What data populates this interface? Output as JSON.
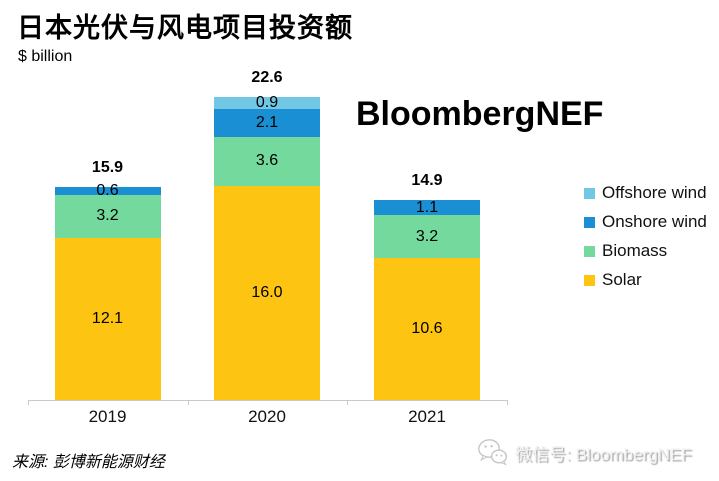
{
  "header": {
    "title": "日本光伏与风电项目投资额",
    "unit_label": "$ billion"
  },
  "watermark": {
    "text": "BloombergNEF"
  },
  "footer": {
    "source": "来源:  彭博新能源财经",
    "wechat": "微信号: BloombergNEF"
  },
  "colors": {
    "solar": "#FDC412",
    "biomass": "#73D99C",
    "onshore_wind": "#1B8FD3",
    "offshore_wind": "#72C7E5",
    "axis": "#C9C9C9",
    "label_text": "#000000",
    "watermark_text": "#000000",
    "footer_gray": "#CFCFCF"
  },
  "chart_data": {
    "type": "bar",
    "stacked": true,
    "title": "日本光伏与风电项目投资额",
    "ylabel": "$ billion",
    "categories": [
      "2019",
      "2020",
      "2021"
    ],
    "series": [
      {
        "name": "Solar",
        "color_key": "solar",
        "values": [
          12.1,
          16.0,
          10.6
        ]
      },
      {
        "name": "Biomass",
        "color_key": "biomass",
        "values": [
          3.2,
          3.6,
          3.2
        ]
      },
      {
        "name": "Onshore wind",
        "color_key": "onshore_wind",
        "values": [
          0.6,
          2.1,
          1.1
        ]
      },
      {
        "name": "Offshore wind",
        "color_key": "offshore_wind",
        "values": [
          0,
          0.9,
          0
        ]
      }
    ],
    "totals": [
      "15.9",
      "22.6",
      "14.9"
    ],
    "legend": [
      {
        "label": "Offshore wind",
        "color_key": "offshore_wind"
      },
      {
        "label": "Onshore wind",
        "color_key": "onshore_wind"
      },
      {
        "label": "Biomass",
        "color_key": "biomass"
      },
      {
        "label": "Solar",
        "color_key": "solar"
      }
    ],
    "legend_position": "right",
    "grid": false
  }
}
